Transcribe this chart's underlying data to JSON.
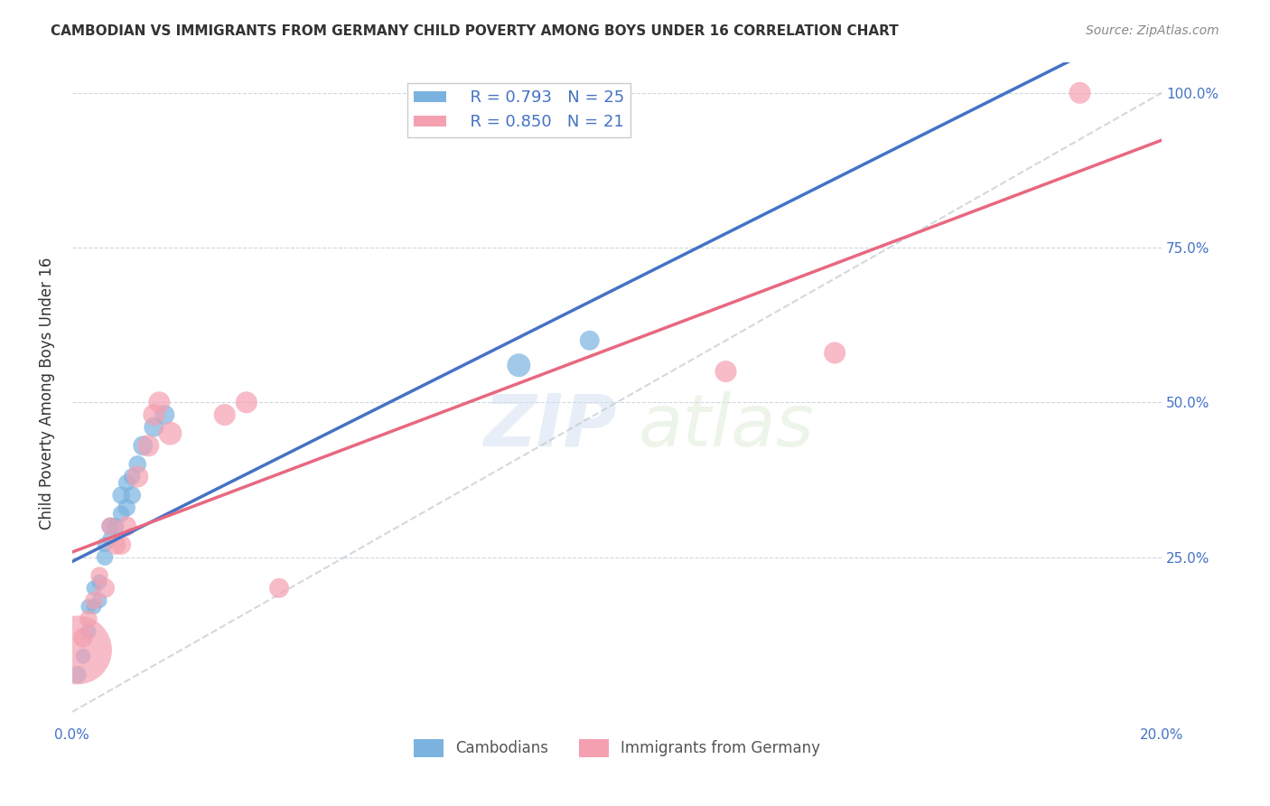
{
  "title": "CAMBODIAN VS IMMIGRANTS FROM GERMANY CHILD POVERTY AMONG BOYS UNDER 16 CORRELATION CHART",
  "source": "Source: ZipAtlas.com",
  "ylabel": "Child Poverty Among Boys Under 16",
  "xlim": [
    0,
    0.2
  ],
  "ylim": [
    -0.02,
    1.05
  ],
  "legend_r1": "R = 0.793",
  "legend_n1": "N = 25",
  "legend_r2": "R = 0.850",
  "legend_n2": "N = 21",
  "color_blue": "#7ab3e0",
  "color_pink": "#f4a0b0",
  "color_line_blue": "#4472c4",
  "color_line_pink": "#e86880",
  "color_text_blue": "#4472c4",
  "cam_x": [
    0.001,
    0.002,
    0.003,
    0.003,
    0.004,
    0.004,
    0.005,
    0.005,
    0.006,
    0.006,
    0.007,
    0.007,
    0.008,
    0.009,
    0.009,
    0.01,
    0.01,
    0.011,
    0.011,
    0.012,
    0.013,
    0.015,
    0.017,
    0.082,
    0.095
  ],
  "cam_y": [
    0.06,
    0.09,
    0.13,
    0.17,
    0.17,
    0.2,
    0.18,
    0.21,
    0.25,
    0.27,
    0.28,
    0.3,
    0.3,
    0.32,
    0.35,
    0.33,
    0.37,
    0.35,
    0.38,
    0.4,
    0.43,
    0.46,
    0.48,
    0.56,
    0.6
  ],
  "cam_s": [
    200,
    150,
    150,
    150,
    150,
    150,
    150,
    150,
    180,
    150,
    150,
    200,
    180,
    180,
    200,
    200,
    180,
    200,
    180,
    200,
    250,
    250,
    250,
    350,
    250
  ],
  "ger_x": [
    0.001,
    0.002,
    0.003,
    0.004,
    0.005,
    0.006,
    0.007,
    0.008,
    0.009,
    0.01,
    0.012,
    0.014,
    0.015,
    0.016,
    0.018,
    0.028,
    0.032,
    0.038,
    0.12,
    0.14,
    0.185
  ],
  "ger_y": [
    0.1,
    0.12,
    0.15,
    0.18,
    0.22,
    0.2,
    0.3,
    0.27,
    0.27,
    0.3,
    0.38,
    0.43,
    0.48,
    0.5,
    0.45,
    0.48,
    0.5,
    0.2,
    0.55,
    0.58,
    1.0
  ],
  "ger_s": [
    3000,
    250,
    200,
    200,
    200,
    250,
    200,
    250,
    250,
    250,
    300,
    300,
    300,
    300,
    350,
    300,
    300,
    250,
    300,
    300,
    300
  ]
}
